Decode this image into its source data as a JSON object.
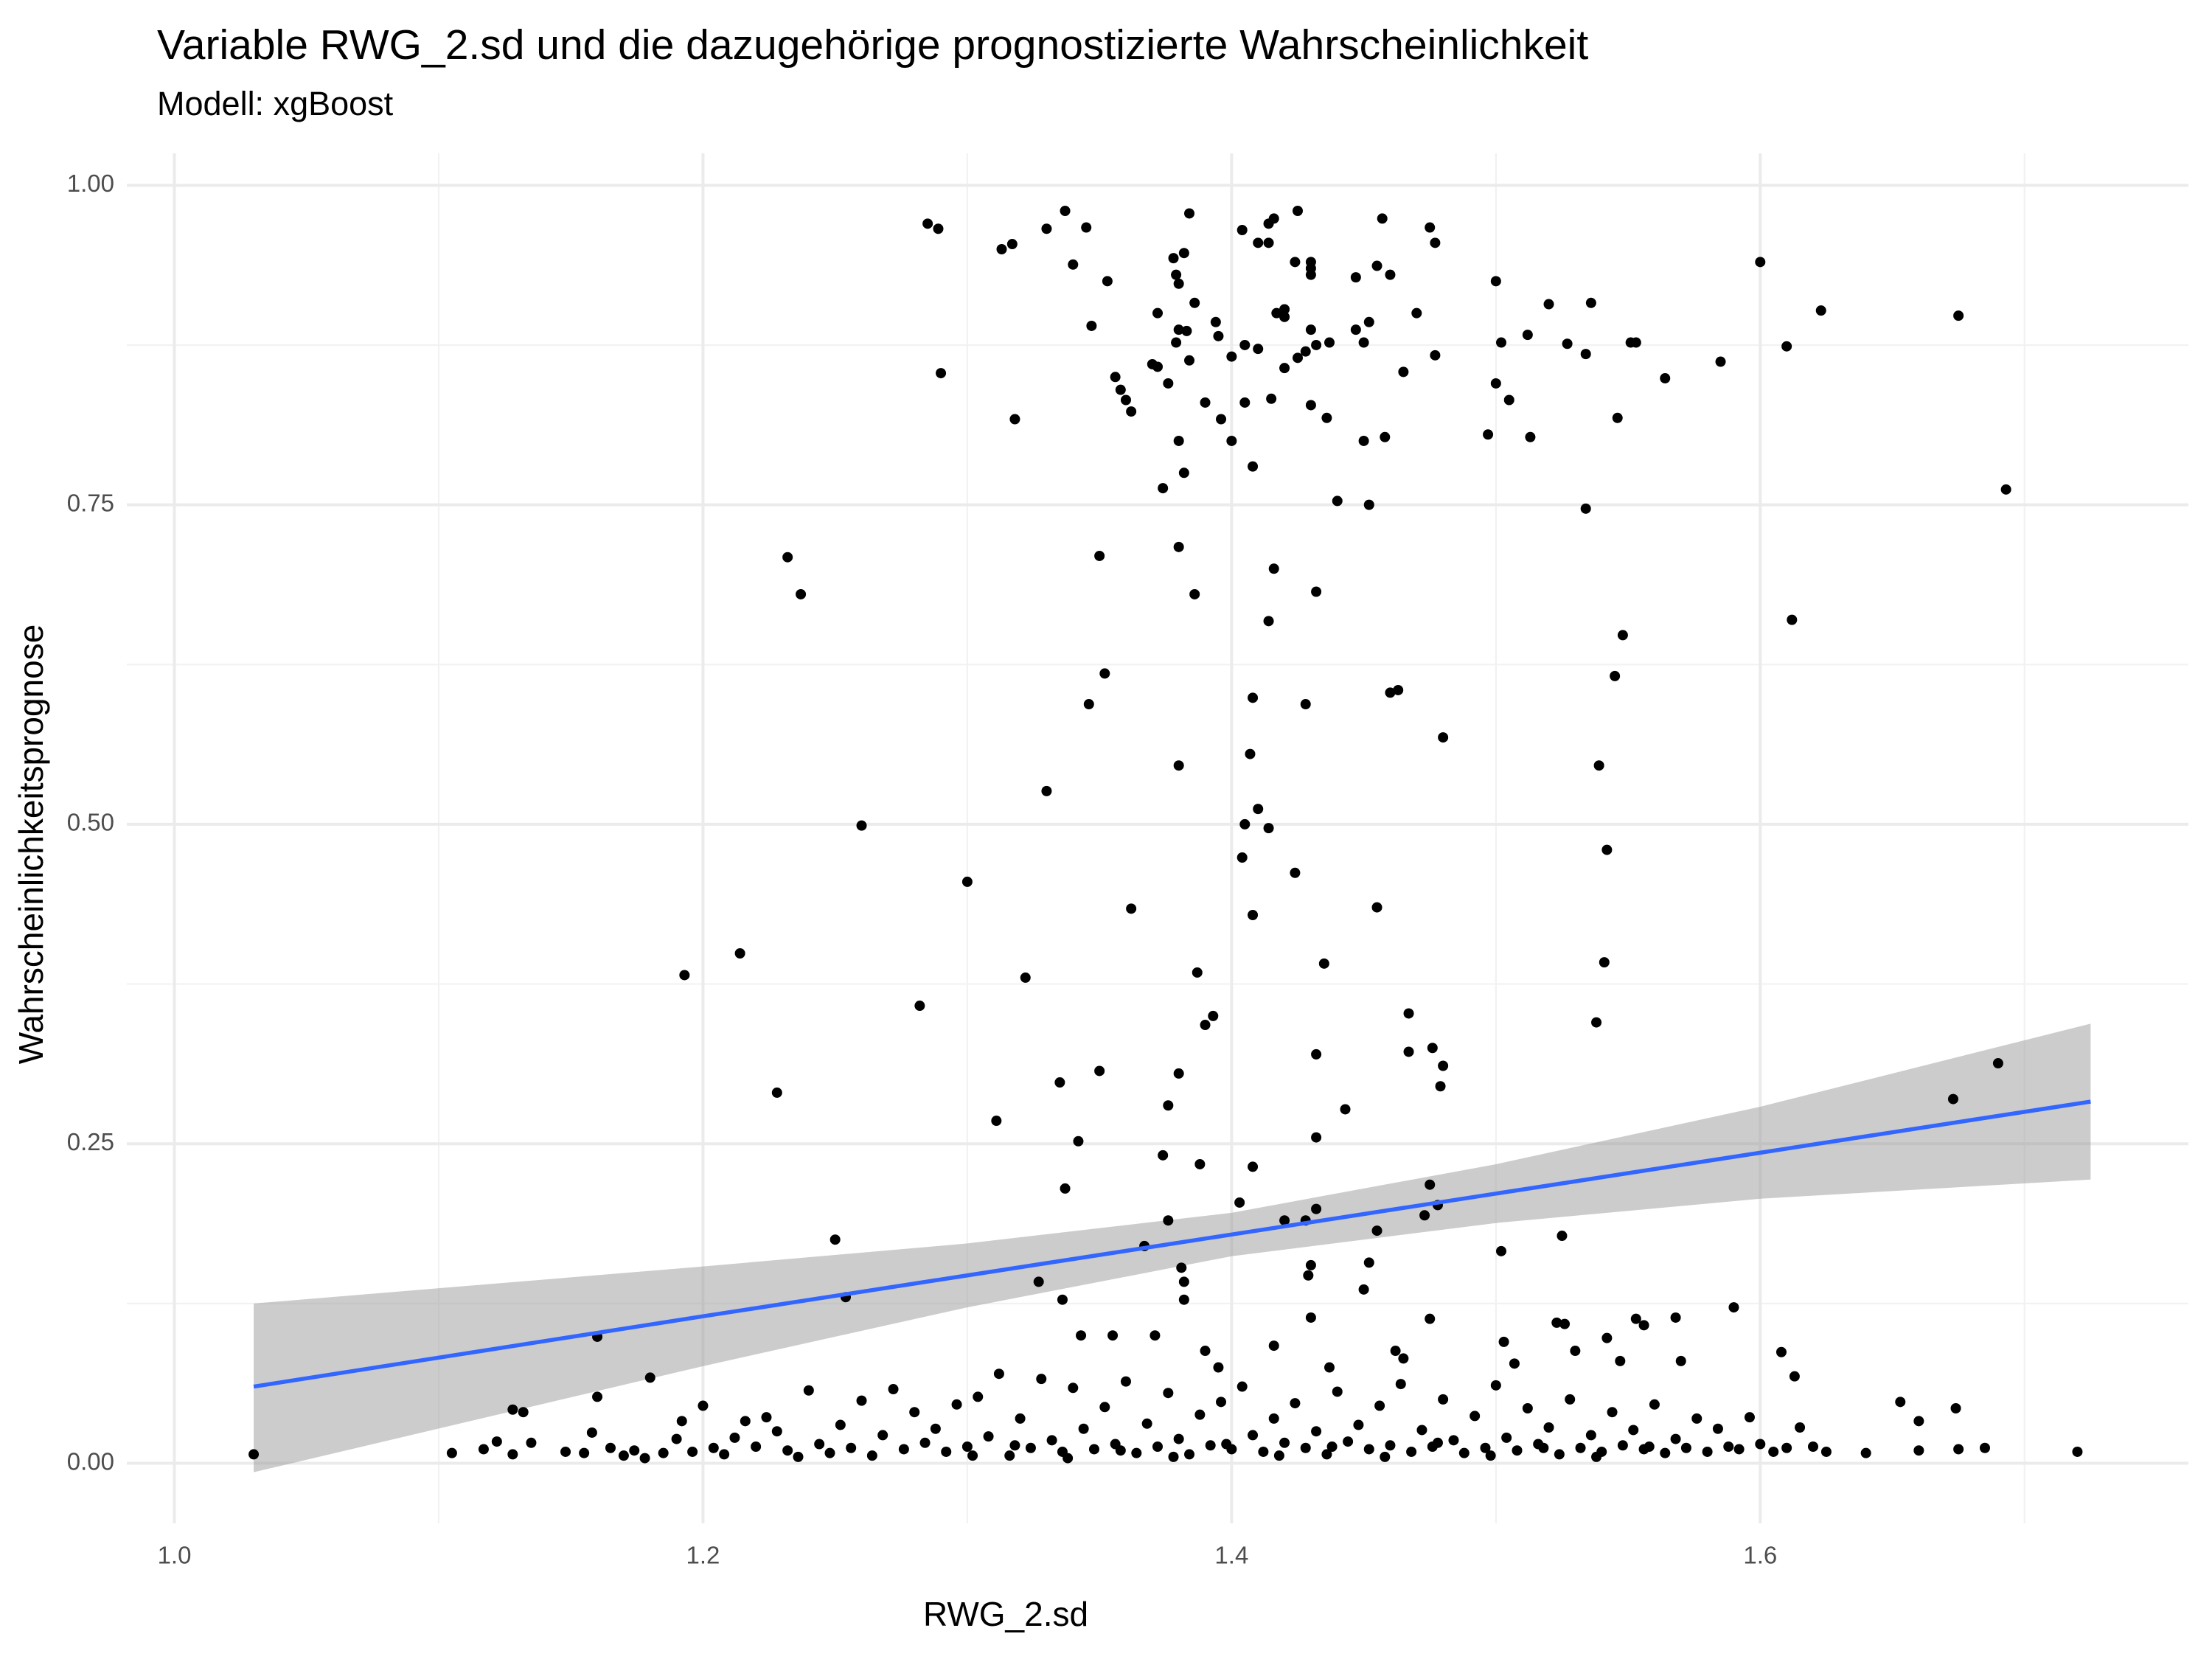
{
  "chart_data": {
    "type": "scatter",
    "title": "Variable RWG_2.sd und die dazugehörige prognostizierte Wahrscheinlichkeit",
    "subtitle": "Modell: xgBoost",
    "x_label": "RWG_2.sd",
    "y_label": "Wahrscheinlichkeitsprognose",
    "xlim": [
      0.982,
      1.762
    ],
    "ylim": [
      -0.047,
      1.025
    ],
    "xticks": [
      {
        "value": 1.0,
        "label": "1.0"
      },
      1.2,
      1.4,
      1.6
    ],
    "yticks": [
      {
        "value": 0,
        "label": "0.00"
      },
      {
        "value": 0.25,
        "label": "0.25"
      },
      {
        "value": 0.5,
        "label": "0.50"
      },
      {
        "value": 0.75,
        "label": "0.75"
      },
      {
        "value": 1,
        "label": "1.00"
      }
    ],
    "minor_xgrid": [
      1.1,
      1.3,
      1.5,
      1.7
    ],
    "minor_ygrid": [
      0.125,
      0.375,
      0.625,
      0.875
    ],
    "grid": true,
    "series": [
      {
        "color": "#000000",
        "x": [
          1.285,
          1.289,
          1.33,
          1.337,
          1.345,
          1.313,
          1.317,
          1.34,
          1.353,
          1.347,
          1.29,
          1.318,
          1.356,
          1.358,
          1.36,
          1.362,
          1.372,
          1.378,
          1.382,
          1.379,
          1.38,
          1.38,
          1.379,
          1.383,
          1.386,
          1.384,
          1.372,
          1.376,
          1.384,
          1.394,
          1.395,
          1.396,
          1.4,
          1.404,
          1.405,
          1.405,
          1.41,
          1.41,
          1.414,
          1.416,
          1.417,
          1.42,
          1.42,
          1.414,
          1.42,
          1.425,
          1.425,
          1.424,
          1.43,
          1.43,
          1.43,
          1.432,
          1.437,
          1.428,
          1.43,
          1.43,
          1.436,
          1.447,
          1.447,
          1.45,
          1.452,
          1.455,
          1.457,
          1.46,
          1.458,
          1.45,
          1.465,
          1.47,
          1.475,
          1.477,
          1.477,
          1.37,
          1.38,
          1.39,
          1.4,
          1.408,
          1.382,
          1.374,
          1.415,
          1.44,
          1.452,
          1.5,
          1.5,
          1.502,
          1.505,
          1.497,
          1.512,
          1.513,
          1.52,
          1.527,
          1.534,
          1.536,
          1.534,
          1.551,
          1.553,
          1.546,
          1.564,
          1.585,
          1.6,
          1.61,
          1.623,
          1.612,
          1.675,
          1.693,
          1.232,
          1.237,
          1.35,
          1.38,
          1.386,
          1.416,
          1.414,
          1.432,
          1.352,
          1.346,
          1.408,
          1.428,
          1.46,
          1.463,
          1.48,
          1.407,
          1.38,
          1.33,
          1.26,
          1.405,
          1.41,
          1.414,
          1.404,
          1.3,
          1.424,
          1.362,
          1.408,
          1.455,
          1.548,
          1.545,
          1.539,
          1.542,
          1.541,
          1.538,
          1.193,
          1.214,
          1.322,
          1.387,
          1.435,
          1.282,
          1.39,
          1.393,
          1.467,
          1.432,
          1.467,
          1.476,
          1.48,
          1.35,
          1.335,
          1.38,
          1.228,
          1.376,
          1.443,
          1.311,
          1.479,
          1.342,
          1.432,
          1.374,
          1.388,
          1.408,
          1.337,
          1.475,
          1.403,
          1.478,
          1.42,
          1.428,
          1.432,
          1.376,
          1.455,
          1.473,
          1.525,
          1.25,
          1.367,
          1.502,
          1.381,
          1.43,
          1.429,
          1.452,
          1.327,
          1.382,
          1.45,
          1.336,
          1.382,
          1.254,
          1.673,
          1.69,
          1.16,
          1.43,
          1.475,
          1.553,
          1.556,
          1.568,
          1.59,
          1.523,
          1.526,
          1.343,
          1.355,
          1.371,
          1.416,
          1.39,
          1.462,
          1.547,
          1.542,
          1.608,
          1.57,
          1.465,
          1.503,
          1.507,
          1.53,
          1.395,
          1.437,
          1.18,
          1.613,
          1.653,
          1.674,
          1.66,
          1.03,
          1.105,
          1.117,
          1.122,
          1.128,
          1.132,
          1.135,
          1.128,
          1.148,
          1.155,
          1.158,
          1.16,
          1.165,
          1.17,
          1.174,
          1.178,
          1.185,
          1.19,
          1.192,
          1.196,
          1.2,
          1.204,
          1.208,
          1.212,
          1.216,
          1.22,
          1.224,
          1.228,
          1.232,
          1.236,
          1.24,
          1.244,
          1.248,
          1.252,
          1.256,
          1.26,
          1.264,
          1.268,
          1.272,
          1.276,
          1.28,
          1.284,
          1.288,
          1.292,
          1.296,
          1.3,
          1.304,
          1.308,
          1.312,
          1.316,
          1.32,
          1.324,
          1.328,
          1.332,
          1.336,
          1.34,
          1.344,
          1.348,
          1.352,
          1.356,
          1.36,
          1.364,
          1.368,
          1.372,
          1.376,
          1.38,
          1.384,
          1.388,
          1.392,
          1.396,
          1.4,
          1.404,
          1.408,
          1.412,
          1.416,
          1.42,
          1.424,
          1.428,
          1.432,
          1.436,
          1.44,
          1.444,
          1.448,
          1.452,
          1.456,
          1.46,
          1.464,
          1.468,
          1.472,
          1.476,
          1.48,
          1.484,
          1.488,
          1.492,
          1.496,
          1.5,
          1.504,
          1.508,
          1.512,
          1.516,
          1.52,
          1.524,
          1.528,
          1.532,
          1.536,
          1.54,
          1.544,
          1.548,
          1.552,
          1.556,
          1.56,
          1.564,
          1.568,
          1.572,
          1.576,
          1.58,
          1.584,
          1.588,
          1.592,
          1.596,
          1.6,
          1.605,
          1.61,
          1.615,
          1.62,
          1.625,
          1.64,
          1.66,
          1.675,
          1.685,
          1.72,
          1.302,
          1.318,
          1.338,
          1.358,
          1.378,
          1.398,
          1.418,
          1.438,
          1.458,
          1.478,
          1.498,
          1.518,
          1.538,
          1.558
        ],
        "values": [
          0.97,
          0.966,
          0.966,
          0.98,
          0.967,
          0.95,
          0.954,
          0.938,
          0.925,
          0.89,
          0.853,
          0.817,
          0.85,
          0.84,
          0.832,
          0.823,
          0.9,
          0.943,
          0.947,
          0.93,
          0.923,
          0.887,
          0.877,
          0.886,
          0.908,
          0.978,
          0.858,
          0.845,
          0.863,
          0.893,
          0.882,
          0.817,
          0.866,
          0.965,
          0.83,
          0.875,
          0.955,
          0.872,
          0.97,
          0.974,
          0.9,
          0.903,
          0.897,
          0.955,
          0.857,
          0.865,
          0.98,
          0.94,
          0.935,
          0.94,
          0.93,
          0.875,
          0.877,
          0.87,
          0.887,
          0.828,
          0.818,
          0.928,
          0.887,
          0.877,
          0.893,
          0.937,
          0.974,
          0.93,
          0.803,
          0.8,
          0.854,
          0.9,
          0.967,
          0.955,
          0.867,
          0.86,
          0.8,
          0.83,
          0.8,
          0.78,
          0.775,
          0.763,
          0.833,
          0.753,
          0.75,
          0.925,
          0.845,
          0.877,
          0.832,
          0.805,
          0.883,
          0.803,
          0.907,
          0.876,
          0.868,
          0.908,
          0.747,
          0.877,
          0.877,
          0.818,
          0.849,
          0.862,
          0.94,
          0.874,
          0.902,
          0.66,
          0.898,
          0.762,
          0.709,
          0.68,
          0.71,
          0.717,
          0.68,
          0.7,
          0.659,
          0.682,
          0.618,
          0.594,
          0.599,
          0.594,
          0.603,
          0.605,
          0.568,
          0.555,
          0.546,
          0.526,
          0.499,
          0.5,
          0.512,
          0.497,
          0.474,
          0.455,
          0.462,
          0.434,
          0.429,
          0.435,
          0.648,
          0.616,
          0.546,
          0.48,
          0.392,
          0.345,
          0.382,
          0.399,
          0.38,
          0.384,
          0.391,
          0.358,
          0.343,
          0.35,
          0.352,
          0.32,
          0.322,
          0.325,
          0.311,
          0.307,
          0.298,
          0.305,
          0.29,
          0.28,
          0.277,
          0.268,
          0.295,
          0.252,
          0.255,
          0.241,
          0.234,
          0.232,
          0.215,
          0.218,
          0.204,
          0.202,
          0.19,
          0.19,
          0.199,
          0.19,
          0.182,
          0.194,
          0.178,
          0.175,
          0.17,
          0.166,
          0.153,
          0.155,
          0.147,
          0.157,
          0.142,
          0.142,
          0.136,
          0.128,
          0.128,
          0.13,
          0.285,
          0.313,
          0.099,
          0.114,
          0.113,
          0.113,
          0.108,
          0.114,
          0.122,
          0.11,
          0.109,
          0.1,
          0.1,
          0.1,
          0.092,
          0.088,
          0.088,
          0.08,
          0.098,
          0.087,
          0.08,
          0.082,
          0.095,
          0.078,
          0.088,
          0.075,
          0.075,
          0.067,
          0.068,
          0.048,
          0.043,
          0.033,
          0.007,
          0.008,
          0.011,
          0.017,
          0.042,
          0.04,
          0.016,
          0.007,
          0.009,
          0.008,
          0.024,
          0.052,
          0.012,
          0.006,
          0.01,
          0.004,
          0.008,
          0.019,
          0.033,
          0.009,
          0.045,
          0.012,
          0.007,
          0.02,
          0.033,
          0.013,
          0.036,
          0.025,
          0.01,
          0.005,
          0.057,
          0.015,
          0.008,
          0.03,
          0.012,
          0.049,
          0.006,
          0.022,
          0.058,
          0.011,
          0.04,
          0.016,
          0.027,
          0.009,
          0.046,
          0.013,
          0.052,
          0.021,
          0.07,
          0.006,
          0.035,
          0.012,
          0.066,
          0.018,
          0.009,
          0.059,
          0.027,
          0.011,
          0.044,
          0.015,
          0.064,
          0.008,
          0.031,
          0.013,
          0.055,
          0.019,
          0.007,
          0.038,
          0.014,
          0.048,
          0.011,
          0.06,
          0.022,
          0.009,
          0.035,
          0.016,
          0.047,
          0.012,
          0.025,
          0.007,
          0.056,
          0.017,
          0.03,
          0.011,
          0.045,
          0.014,
          0.062,
          0.009,
          0.026,
          0.013,
          0.05,
          0.018,
          0.008,
          0.037,
          0.012,
          0.061,
          0.02,
          0.01,
          0.043,
          0.015,
          0.028,
          0.007,
          0.05,
          0.012,
          0.022,
          0.009,
          0.04,
          0.014,
          0.026,
          0.011,
          0.046,
          0.008,
          0.019,
          0.012,
          0.035,
          0.009,
          0.027,
          0.013,
          0.011,
          0.036,
          0.015,
          0.009,
          0.012,
          0.028,
          0.013,
          0.009,
          0.008,
          0.01,
          0.011,
          0.012,
          0.009,
          0.006,
          0.014,
          0.004,
          0.01,
          0.005,
          0.015,
          0.006,
          0.013,
          0.005,
          0.016,
          0.006,
          0.012,
          0.005,
          0.013
        ]
      }
    ],
    "fit": {
      "color": "#3366ff",
      "band_color": "#999999",
      "x": [
        1.03,
        1.2,
        1.3,
        1.4,
        1.5,
        1.6,
        1.725
      ],
      "values": [
        0.06,
        0.115,
        0.147,
        0.179,
        0.211,
        0.243,
        0.283
      ],
      "lower": [
        -0.007,
        0.076,
        0.122,
        0.162,
        0.188,
        0.207,
        0.222
      ],
      "upper": [
        0.125,
        0.154,
        0.172,
        0.196,
        0.234,
        0.279,
        0.344
      ]
    }
  }
}
